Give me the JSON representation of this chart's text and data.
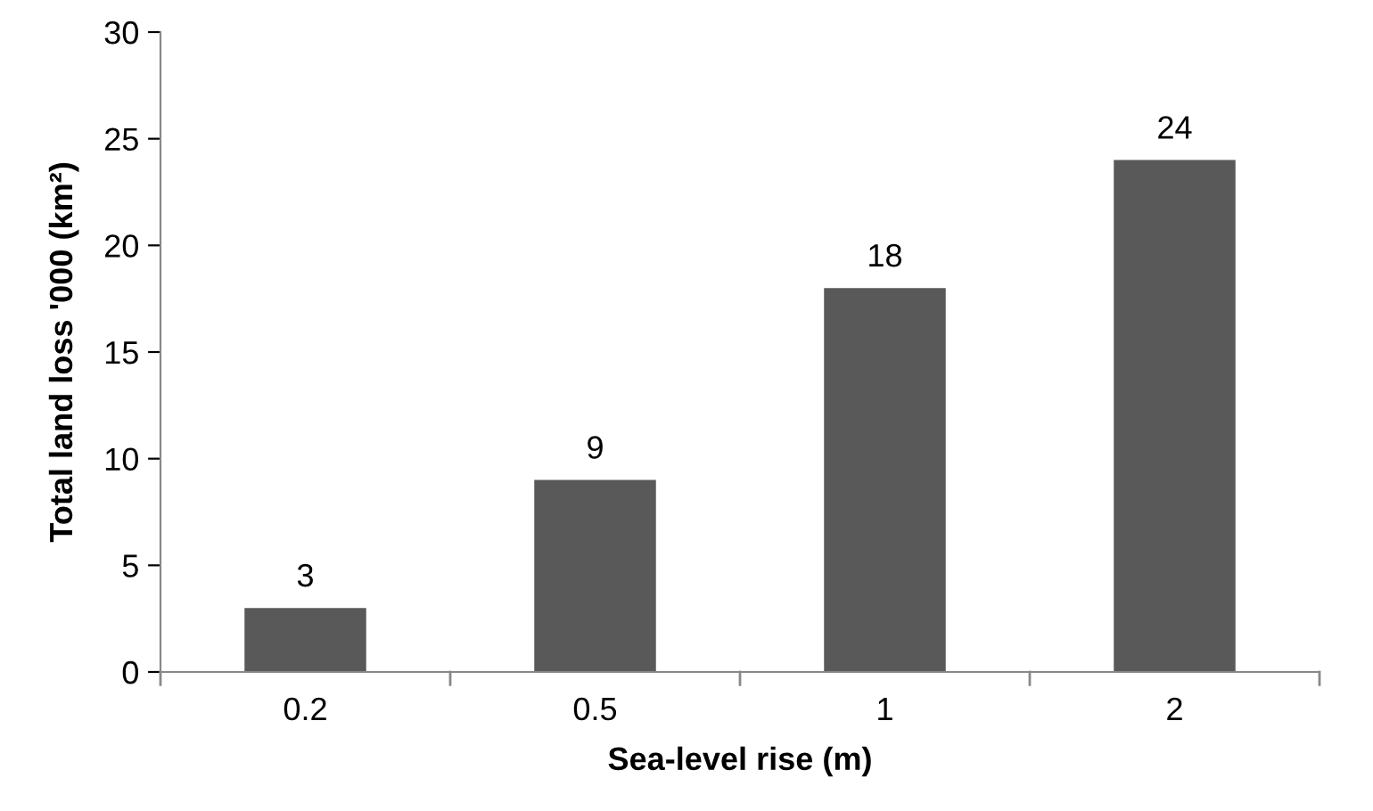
{
  "chart_data": {
    "type": "bar",
    "categories": [
      "0.2",
      "0.5",
      "1",
      "2"
    ],
    "values": [
      3,
      9,
      18,
      24
    ],
    "color": "#595959",
    "xlabel": "Sea-level rise (m)",
    "ylabel": "Total land loss '000 (km²)",
    "ylim": [
      0,
      30
    ],
    "yticks": [
      0,
      5,
      10,
      15,
      20,
      25,
      30
    ],
    "data_labels": true,
    "grid": false,
    "legend": false
  }
}
